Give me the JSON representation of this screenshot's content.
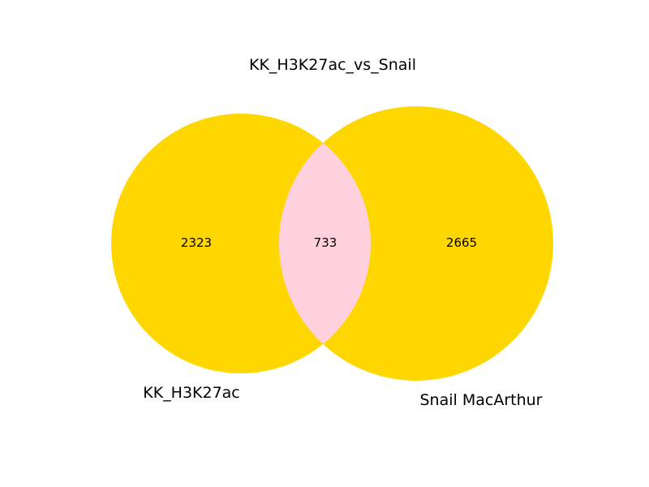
{
  "title": "KK_H3K27ac_vs_Snail",
  "sets": [
    {
      "name": "KK_H3K27ac",
      "only_count": "2323",
      "color": "#FFD700"
    },
    {
      "name": "Snail MacArthur",
      "only_count": "2665",
      "color": "#FFD700"
    }
  ],
  "intersection": {
    "count": "733",
    "color": "#FFD1DC"
  }
}
